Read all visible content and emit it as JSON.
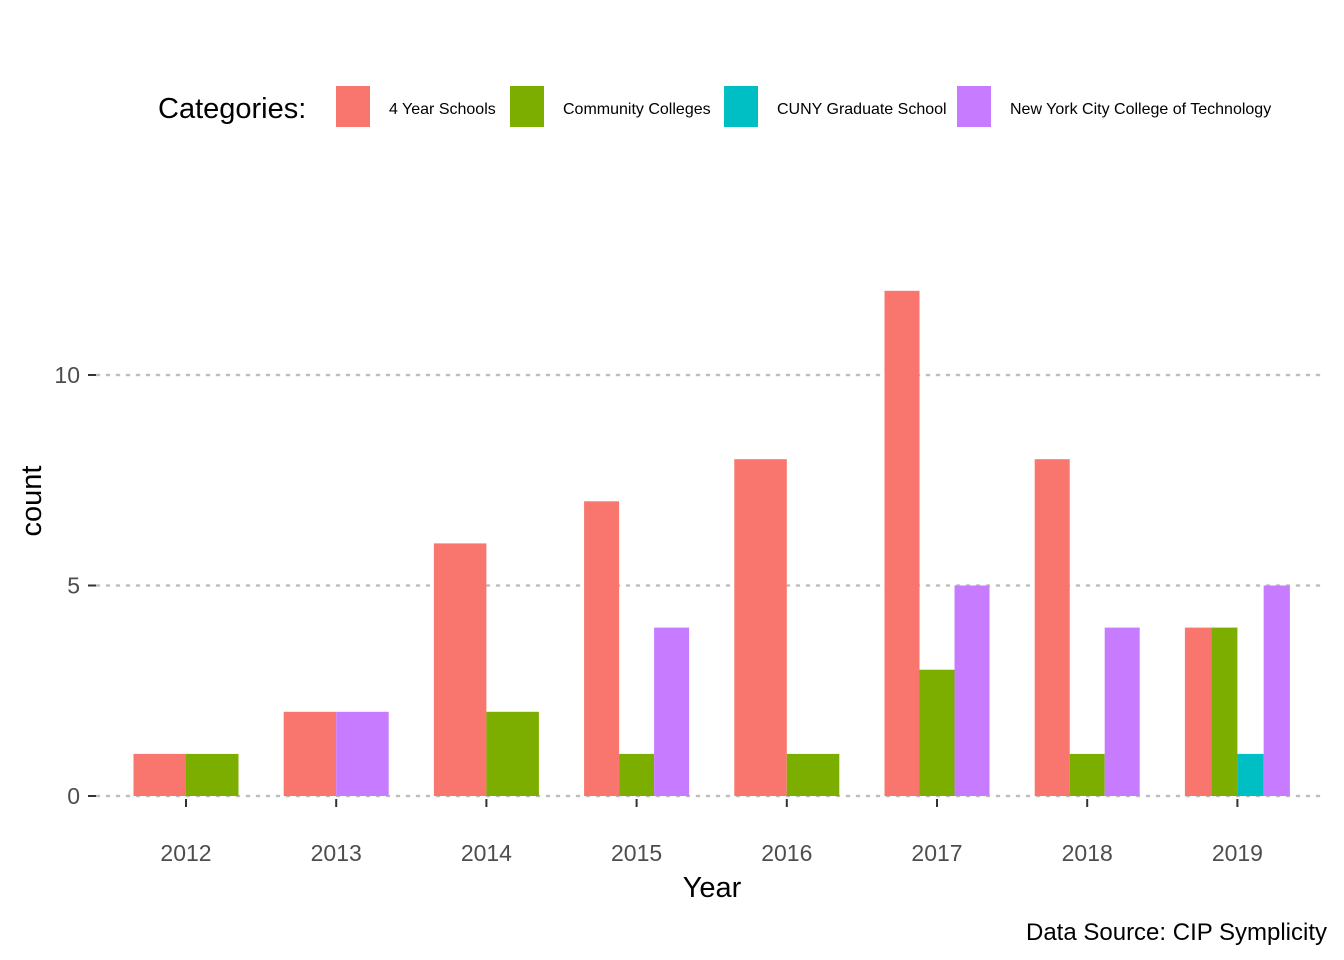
{
  "chart_data": {
    "type": "bar",
    "xlabel": "Year",
    "ylabel": "count",
    "categories": [
      "2012",
      "2013",
      "2014",
      "2015",
      "2016",
      "2017",
      "2018",
      "2019"
    ],
    "ylim": [
      0,
      13
    ],
    "yticks": [
      0,
      5,
      10
    ],
    "grid": "horizontal dotted",
    "legend_position": "top",
    "legend_title": "Categories:",
    "caption": "Data Source: CIP Symplicity",
    "series": [
      {
        "name": "4 Year Schools",
        "color": "#F8766D",
        "values": [
          1,
          2,
          6,
          7,
          8,
          12,
          8,
          4
        ]
      },
      {
        "name": "Community Colleges",
        "color": "#7CAE00",
        "values": [
          1,
          0,
          2,
          1,
          1,
          3,
          1,
          4
        ]
      },
      {
        "name": "CUNY Graduate School",
        "color": "#00BFC4",
        "values": [
          0,
          0,
          0,
          0,
          0,
          0,
          0,
          1
        ]
      },
      {
        "name": "New York City College of Technology",
        "color": "#C77CFF",
        "values": [
          0,
          2,
          0,
          4,
          0,
          5,
          4,
          5
        ]
      }
    ]
  }
}
